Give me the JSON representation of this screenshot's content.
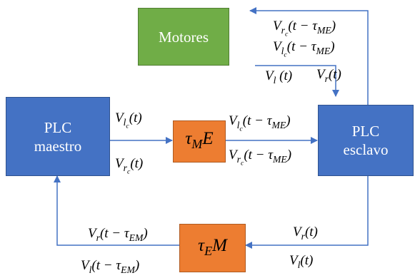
{
  "colors": {
    "plc_box": "#4472c4",
    "motores_box": "#70ad47",
    "delay_box": "#ed7d31",
    "arrow": "#4472c4"
  },
  "nodes": {
    "motores": "Motores",
    "plc_maestro": [
      "PLC",
      "maestro"
    ],
    "plc_esclavo": [
      "PLC",
      "esclavo"
    ],
    "tau_me": "τ_ME",
    "tau_em": "τ_EM"
  },
  "edge_labels": {
    "maestro_out_vl": "V_{l_c}(t)",
    "maestro_out_vr": "V_{r_c}(t)",
    "esclavo_in_vl": "V_{l_c}(t − τ_{ME})",
    "esclavo_in_vr": "V_{r_c}(t − τ_{ME})",
    "motores_in_vr": "V_{r_c}(t − τ_{ME})",
    "motores_in_vl": "V_{l_c}(t − τ_{ME})",
    "motores_out_vl": "V_l (t)",
    "motores_out_vr": "V_r(t)",
    "esclavo_out_vr": "V_r(t)",
    "esclavo_out_vl": "V_l(t)",
    "maestro_in_vr": "V_r(t − τ_{EM})",
    "maestro_in_vl": "V_l(t − τ_{EM})"
  }
}
